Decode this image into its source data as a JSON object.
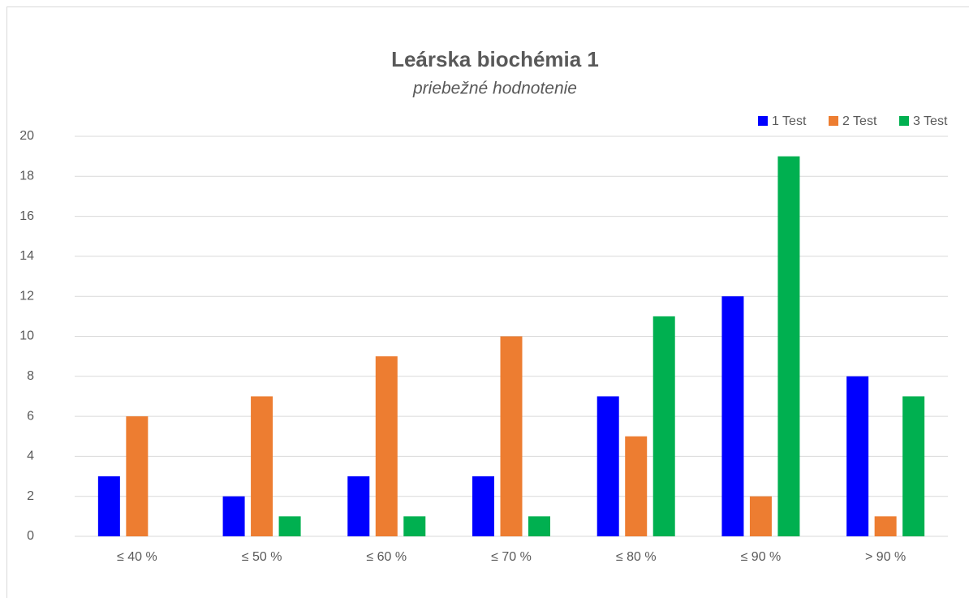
{
  "chart_data": {
    "type": "bar",
    "title": "Leárska biochémia 1",
    "subtitle": "priebežné hodnotenie",
    "categories": [
      "≤ 40 %",
      "≤ 50 %",
      "≤ 60 %",
      "≤ 70 %",
      "≤ 80 %",
      "≤ 90 %",
      "> 90 %"
    ],
    "series": [
      {
        "name": "1 Test",
        "color": "#0000ff",
        "values": [
          3,
          2,
          3,
          3,
          7,
          12,
          8
        ]
      },
      {
        "name": "2 Test",
        "color": "#ed7d31",
        "values": [
          6,
          7,
          9,
          10,
          5,
          2,
          1
        ]
      },
      {
        "name": "3 Test",
        "color": "#00b050",
        "values": [
          0,
          1,
          1,
          1,
          11,
          19,
          7
        ]
      }
    ],
    "ylim": [
      0,
      20
    ],
    "yticks": [
      0,
      2,
      4,
      6,
      8,
      10,
      12,
      14,
      16,
      18,
      20
    ],
    "grid": true,
    "legend": "top-right"
  }
}
